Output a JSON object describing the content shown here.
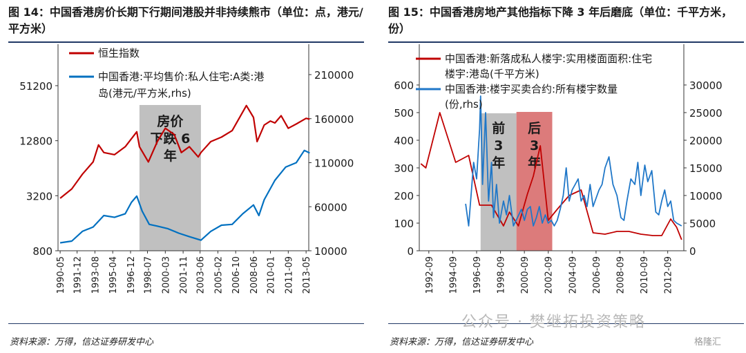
{
  "left": {
    "title": "图 14：中国香港房价长期下行期间港股并非持续熊市（单位：点，港元/平方米）",
    "source": "资料来源：万得，信达证券研发中心",
    "shade_label": [
      "房价",
      "下跌 6",
      "年"
    ],
    "chart_data": {
      "type": "line",
      "x_ticks": [
        "1990-05",
        "1991-12",
        "1993-08",
        "1995-04",
        "1996-12",
        "1998-07",
        "2000-03",
        "2001-11",
        "2003-06",
        "2005-02",
        "2006-10",
        "2008-06",
        "2010-01",
        "2011-09",
        "2013-05"
      ],
      "y_left_ticks": [
        "51200",
        "12800",
        "3200",
        "800"
      ],
      "y_right_ticks": [
        "210000",
        "160000",
        "110000",
        "60000",
        "10000"
      ],
      "y_left_scale": "log2",
      "ylim_left": [
        800,
        102400
      ],
      "ylim_right": [
        10000,
        210000
      ],
      "shaded_period": [
        "1997-10",
        "2003-07"
      ],
      "series": [
        {
          "name": "恒生指数",
          "axis": "left",
          "color": "#c00000",
          "points": [
            [
              "1990-05",
              3000
            ],
            [
              "1991-06",
              3800
            ],
            [
              "1992-06",
              5500
            ],
            [
              "1993-06",
              7500
            ],
            [
              "1993-12",
              11500
            ],
            [
              "1994-06",
              9500
            ],
            [
              "1995-06",
              9000
            ],
            [
              "1996-06",
              11000
            ],
            [
              "1997-07",
              16000
            ],
            [
              "1997-10",
              11000
            ],
            [
              "1998-08",
              7500
            ],
            [
              "1999-06",
              12500
            ],
            [
              "2000-03",
              17500
            ],
            [
              "2001-01",
              15000
            ],
            [
              "2001-09",
              9500
            ],
            [
              "2002-06",
              11000
            ],
            [
              "2003-04",
              8500
            ],
            [
              "2003-07",
              9500
            ],
            [
              "2004-06",
              12500
            ],
            [
              "2005-06",
              14000
            ],
            [
              "2006-06",
              16500
            ],
            [
              "2007-10",
              31000
            ],
            [
              "2008-06",
              23000
            ],
            [
              "2008-10",
              12500
            ],
            [
              "2009-06",
              19000
            ],
            [
              "2010-01",
              21000
            ],
            [
              "2010-06",
              20000
            ],
            [
              "2011-01",
              24000
            ],
            [
              "2011-09",
              17500
            ],
            [
              "2012-06",
              19500
            ],
            [
              "2013-05",
              22500
            ],
            [
              "2013-09",
              22000
            ]
          ]
        },
        {
          "name": "中国香港:平均售价:私人住宅:A类:港岛(港元/平方米,rhs)",
          "axis": "right",
          "color": "#0070c0",
          "points": [
            [
              "1990-05",
              19000
            ],
            [
              "1991-06",
              21000
            ],
            [
              "1992-06",
              32000
            ],
            [
              "1993-06",
              37000
            ],
            [
              "1994-06",
              50000
            ],
            [
              "1995-06",
              48000
            ],
            [
              "1996-06",
              52000
            ],
            [
              "1997-01",
              65000
            ],
            [
              "1997-07",
              72000
            ],
            [
              "1998-01",
              55000
            ],
            [
              "1998-09",
              40000
            ],
            [
              "1999-06",
              38000
            ],
            [
              "2000-06",
              35000
            ],
            [
              "2001-06",
              30000
            ],
            [
              "2002-06",
              26000
            ],
            [
              "2003-07",
              22000
            ],
            [
              "2004-06",
              32000
            ],
            [
              "2005-06",
              39000
            ],
            [
              "2006-06",
              40000
            ],
            [
              "2007-06",
              52000
            ],
            [
              "2008-06",
              62000
            ],
            [
              "2008-12",
              50000
            ],
            [
              "2009-06",
              68000
            ],
            [
              "2010-06",
              90000
            ],
            [
              "2011-06",
              105000
            ],
            [
              "2012-06",
              110000
            ],
            [
              "2013-03",
              124000
            ],
            [
              "2013-09",
              121000
            ]
          ]
        }
      ]
    },
    "legend": [
      "恒生指数",
      "中国香港:平均售价:私人住宅:A类:港",
      "岛(港元/平方米,rhs)"
    ]
  },
  "right": {
    "title": "图 15：中国香港房地产其他指标下降 3 年后磨底（单位：千平方米，份）",
    "source": "资料来源：万得，信达证券研发中心",
    "shade1_label": [
      "前",
      "3",
      "年"
    ],
    "shade2_label": [
      "后",
      "3",
      "年"
    ],
    "chart_data": {
      "type": "line",
      "x_ticks": [
        "1992-09",
        "1994-09",
        "1996-09",
        "1998-09",
        "2000-09",
        "2002-09",
        "2004-09",
        "2006-09",
        "2008-09",
        "2010-09",
        "2012-09"
      ],
      "y_left_ticks": [
        "600",
        "500",
        "400",
        "300",
        "200",
        "100",
        "0"
      ],
      "y_right_ticks": [
        "30000",
        "25000",
        "20000",
        "15000",
        "10000",
        "5000",
        "0"
      ],
      "ylim_left": [
        0,
        600
      ],
      "ylim_right": [
        0,
        30000
      ],
      "shaded_periods": [
        [
          "1997-01",
          "2000-01"
        ],
        [
          "2000-01",
          "2003-01"
        ]
      ],
      "series": [
        {
          "name": "中国香港:新落成私人楼宇:实用楼面面积:住宅楼宇:港岛(千平方米)",
          "axis": "left",
          "color": "#c00000",
          "points": [
            [
              "1992-01",
              315
            ],
            [
              "1992-06",
              300
            ],
            [
              "1993-08",
              500
            ],
            [
              "1994-12",
              320
            ],
            [
              "1996-01",
              345
            ],
            [
              "1996-12",
              165
            ],
            [
              "1997-12",
              165
            ],
            [
              "1998-12",
              90
            ],
            [
              "1999-06",
              140
            ],
            [
              "2000-03",
              90
            ],
            [
              "2000-12",
              205
            ],
            [
              "2001-06",
              270
            ],
            [
              "2002-01",
              380
            ],
            [
              "2002-09",
              110
            ],
            [
              "2003-06",
              150
            ],
            [
              "2004-06",
              200
            ],
            [
              "2005-06",
              220
            ],
            [
              "2006-06",
              65
            ],
            [
              "2007-06",
              60
            ],
            [
              "2008-06",
              70
            ],
            [
              "2009-06",
              70
            ],
            [
              "2010-06",
              60
            ],
            [
              "2011-06",
              55
            ],
            [
              "2012-03",
              55
            ],
            [
              "2012-12",
              115
            ],
            [
              "2013-06",
              85
            ],
            [
              "2013-11",
              40
            ]
          ]
        },
        {
          "name": "中国香港:楼宇买卖合约:所有楼宇数量(份,rhs)",
          "axis": "right",
          "color": "#1f77c8",
          "points": [
            [
              "1995-10",
              8500
            ],
            [
              "1996-01",
              4500
            ],
            [
              "1996-06",
              16000
            ],
            [
              "1996-09",
              13000
            ],
            [
              "1996-12",
              22000
            ],
            [
              "1997-01",
              28000
            ],
            [
              "1997-03",
              12000
            ],
            [
              "1997-06",
              25000
            ],
            [
              "1997-09",
              9000
            ],
            [
              "1997-12",
              16000
            ],
            [
              "1998-02",
              6000
            ],
            [
              "1998-05",
              12000
            ],
            [
              "1998-08",
              5000
            ],
            [
              "1998-12",
              9000
            ],
            [
              "1999-03",
              6500
            ],
            [
              "1999-06",
              10000
            ],
            [
              "1999-10",
              4500
            ],
            [
              "2000-02",
              6000
            ],
            [
              "2000-06",
              7500
            ],
            [
              "2000-09",
              5500
            ],
            [
              "2000-12",
              7500
            ],
            [
              "2001-03",
              8000
            ],
            [
              "2001-06",
              4500
            ],
            [
              "2001-09",
              6000
            ],
            [
              "2001-12",
              8000
            ],
            [
              "2002-03",
              5000
            ],
            [
              "2002-06",
              6500
            ],
            [
              "2002-09",
              5000
            ],
            [
              "2002-12",
              5500
            ],
            [
              "2003-03",
              4500
            ],
            [
              "2003-06",
              5500
            ],
            [
              "2003-09",
              7500
            ],
            [
              "2003-12",
              10000
            ],
            [
              "2004-03",
              15000
            ],
            [
              "2004-06",
              9000
            ],
            [
              "2004-09",
              11000
            ],
            [
              "2004-12",
              12000
            ],
            [
              "2005-03",
              13000
            ],
            [
              "2005-06",
              9000
            ],
            [
              "2005-09",
              10000
            ],
            [
              "2005-12",
              8000
            ],
            [
              "2006-03",
              12000
            ],
            [
              "2006-06",
              8000
            ],
            [
              "2006-09",
              9500
            ],
            [
              "2006-12",
              11000
            ],
            [
              "2007-03",
              12000
            ],
            [
              "2007-06",
              15000
            ],
            [
              "2007-10",
              17000
            ],
            [
              "2008-02",
              12000
            ],
            [
              "2008-06",
              10000
            ],
            [
              "2008-10",
              6000
            ],
            [
              "2009-01",
              5500
            ],
            [
              "2009-04",
              9000
            ],
            [
              "2009-08",
              13000
            ],
            [
              "2009-12",
              12000
            ],
            [
              "2010-03",
              16000
            ],
            [
              "2010-06",
              10000
            ],
            [
              "2010-10",
              15500
            ],
            [
              "2011-01",
              12500
            ],
            [
              "2011-05",
              14500
            ],
            [
              "2011-09",
              7000
            ],
            [
              "2011-12",
              6500
            ],
            [
              "2012-03",
              9000
            ],
            [
              "2012-06",
              11000
            ],
            [
              "2012-09",
              8000
            ],
            [
              "2012-12",
              9000
            ],
            [
              "2013-03",
              5500
            ],
            [
              "2013-06",
              5000
            ],
            [
              "2013-11",
              4500
            ]
          ]
        }
      ]
    },
    "legend": [
      "中国香港:新落成私人楼宇:实用楼面面积:住宅",
      "楼宇:港岛(千平方米)",
      "中国香港:楼宇买卖合约:所有楼宇数量",
      "(份,rhs)"
    ]
  },
  "watermark": "公众号 · 樊继拓投资策略",
  "watermark_logo": "格隆汇"
}
